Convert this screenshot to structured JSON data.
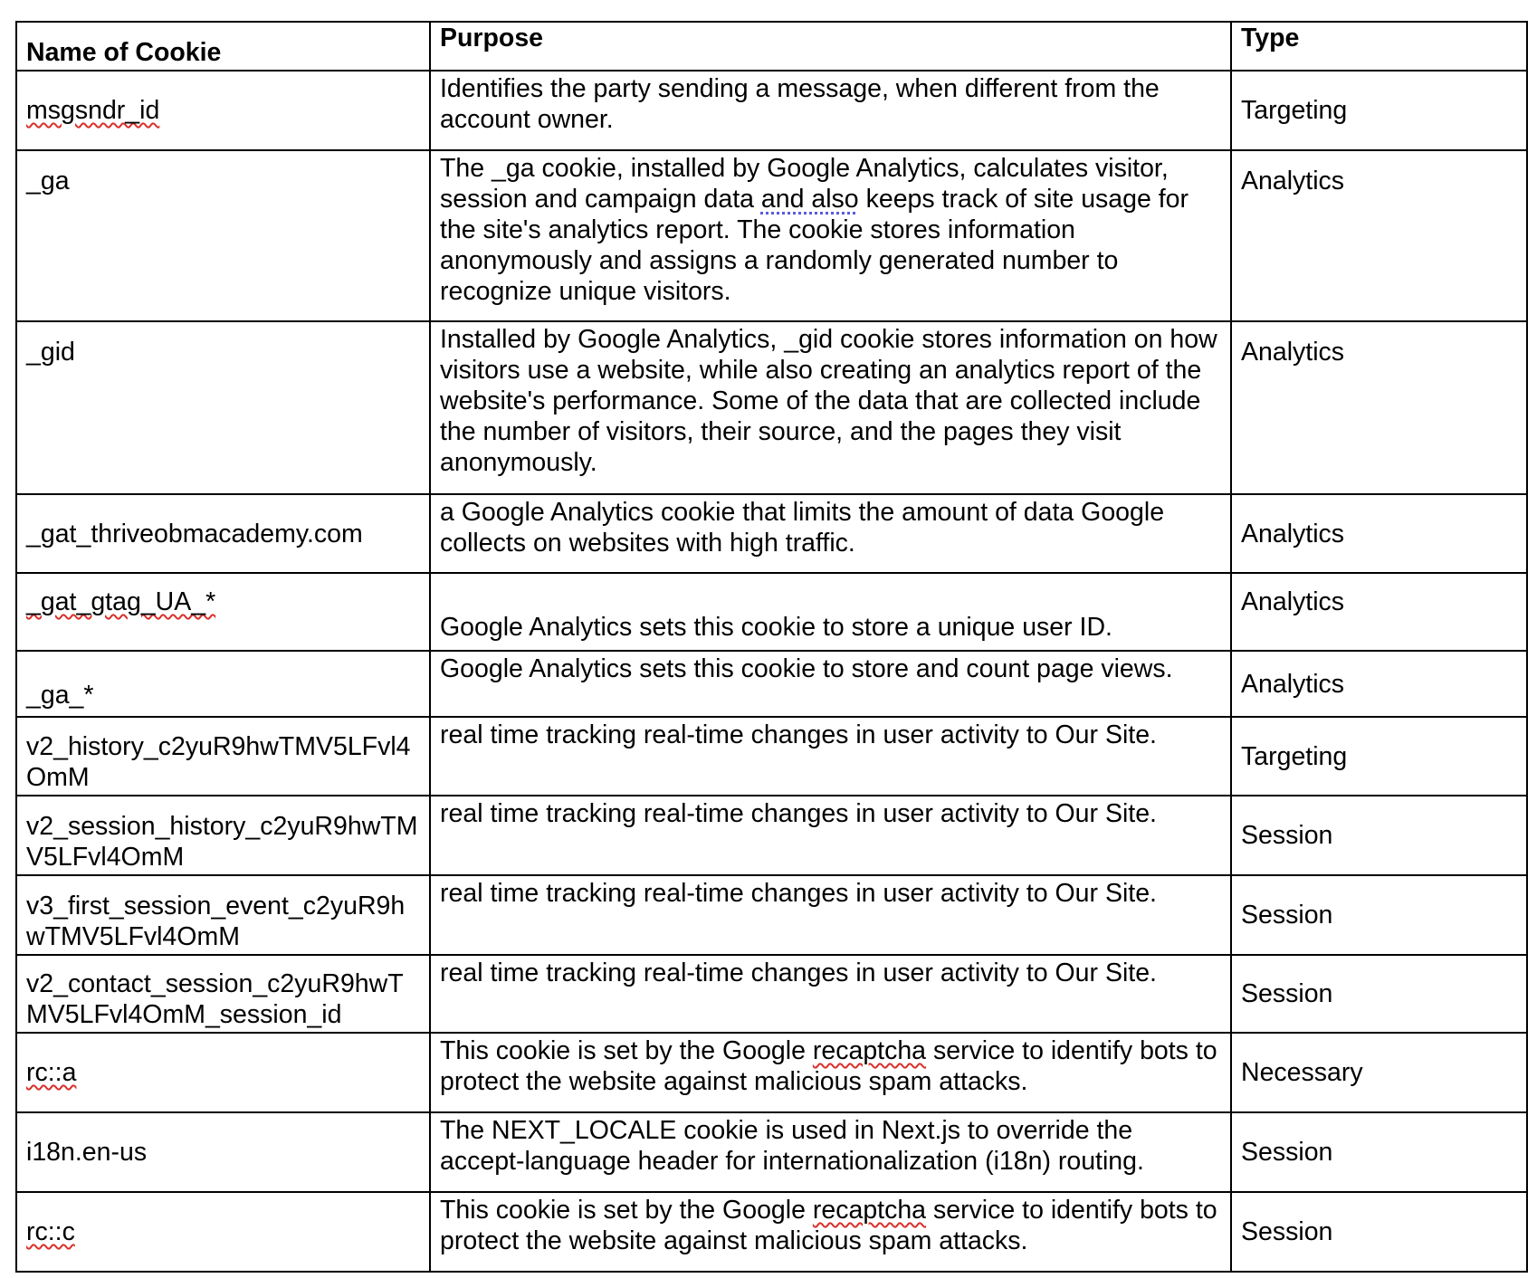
{
  "table": {
    "headers": {
      "name": "Name of Cookie",
      "purpose": "Purpose",
      "type": "Type"
    },
    "rows": [
      {
        "name": "msgsndr_id",
        "purpose": "Identifies the party sending a message, when different from the account owner.",
        "type": "Targeting"
      },
      {
        "name": "_ga",
        "purpose_pre": "The _ga cookie, installed by Google Analytics, calculates visitor, session and campaign data ",
        "purpose_flag": "and also",
        "purpose_post": " keeps track of site usage for the site's analytics report. The cookie stores information anonymously and assigns a randomly generated number to recognize unique visitors.",
        "type": "Analytics"
      },
      {
        "name": "_gid",
        "purpose": "Installed by Google Analytics, _gid cookie stores information on how visitors use a website, while also creating an analytics report of the website's performance. Some of the data that are collected include the number of visitors, their source, and the pages they visit anonymously.",
        "type": "Analytics"
      },
      {
        "name": "_gat_thriveobmacademy.com",
        "purpose": "a Google Analytics cookie that limits the amount of data Google collects on websites with high traffic.",
        "type": "Analytics"
      },
      {
        "name": "_gat_gtag_UA_*",
        "purpose": "Google Analytics sets this cookie to store a unique user ID.",
        "type": "Analytics"
      },
      {
        "name": "_ga_*",
        "purpose": "Google Analytics sets this cookie to store and count page views.",
        "type": "Analytics"
      },
      {
        "name": "v2_history_c2yuR9hwTMV5LFvl4OmM",
        "purpose": "real time tracking real-time changes in user activity to Our Site.",
        "type": "Targeting"
      },
      {
        "name": "v2_session_history_c2yuR9hwTMV5LFvl4OmM",
        "purpose": "real time tracking real-time changes in user activity to Our Site.",
        "type": "Session"
      },
      {
        "name": "v3_first_session_event_c2yuR9hwTMV5LFvl4OmM",
        "purpose": "real time tracking real-time changes in user activity to Our Site.",
        "type": "Session"
      },
      {
        "name": "v2_contact_session_c2yuR9hwTMV5LFvl4OmM_session_id",
        "purpose": "real time tracking real-time changes in user activity to Our Site.",
        "type": "Session"
      },
      {
        "name": "rc::a",
        "purpose_pre": "This cookie is set by the Google ",
        "purpose_flag": "recaptcha",
        "purpose_post": " service to identify bots to protect the website against malicious spam attacks.",
        "type": "Necessary"
      },
      {
        "name": "i18n.en-us",
        "purpose": "The NEXT_LOCALE cookie is used in Next.js to override the accept-language header for internationalization (i18n) routing.",
        "type": "Session"
      },
      {
        "name": "rc::c",
        "purpose_pre": "This cookie is set by the Google ",
        "purpose_flag": "recaptcha",
        "purpose_post": " service to identify bots to protect the website against malicious spam attacks.",
        "type": "Session"
      }
    ]
  }
}
